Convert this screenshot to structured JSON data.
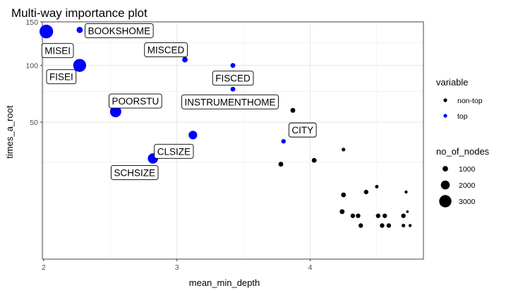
{
  "chart_data": {
    "type": "scatter",
    "title": "Multi-way importance plot",
    "xlabel": "mean_min_depth",
    "ylabel": "times_a_root",
    "xlim": [
      1.99,
      4.85
    ],
    "y_scale": "sqrt",
    "ylim": [
      0,
      150
    ],
    "x_ticks": [
      2,
      3,
      4
    ],
    "x_tick_labels": [
      "2",
      "3",
      "4"
    ],
    "y_ticks": [
      50,
      100,
      150
    ],
    "y_tick_labels": [
      "50",
      "100",
      "150"
    ],
    "grid": true,
    "legend_position": "right",
    "color_legend": {
      "title": "variable",
      "entries": [
        {
          "label": "non-top",
          "color": "#000000"
        },
        {
          "label": "top",
          "color": "#0000ff"
        }
      ]
    },
    "size_legend": {
      "title": "no_of_nodes",
      "entries": [
        {
          "label": "1000",
          "value": 1000
        },
        {
          "label": "2000",
          "value": 2000
        },
        {
          "label": "3000",
          "value": 3000
        }
      ]
    },
    "points": [
      {
        "x": 2.02,
        "y": 138,
        "nodes": 3400,
        "group": "top",
        "label": "MISEI"
      },
      {
        "x": 2.27,
        "y": 140,
        "nodes": 1200,
        "group": "top",
        "label": "BOOKSHOME"
      },
      {
        "x": 2.27,
        "y": 100,
        "nodes": 3200,
        "group": "top",
        "label": "FISEI"
      },
      {
        "x": 3.06,
        "y": 106,
        "nodes": 1000,
        "group": "top",
        "label": "MISCED"
      },
      {
        "x": 3.42,
        "y": 100,
        "nodes": 800,
        "group": "top",
        "label": "FISCED"
      },
      {
        "x": 3.42,
        "y": 77,
        "nodes": 800,
        "group": "top",
        "label": "INSTRUMENTHOME"
      },
      {
        "x": 2.54,
        "y": 58,
        "nodes": 2700,
        "group": "top",
        "label": "POORSTU"
      },
      {
        "x": 3.12,
        "y": 41,
        "nodes": 1900,
        "group": "top",
        "label": "CLSIZE"
      },
      {
        "x": 3.8,
        "y": 37,
        "nodes": 700,
        "group": "top",
        "label": "CITY"
      },
      {
        "x": 2.82,
        "y": 27,
        "nodes": 2400,
        "group": "top",
        "label": "SCHSIZE"
      },
      {
        "x": 3.87,
        "y": 59,
        "nodes": 800,
        "group": "non-top"
      },
      {
        "x": 4.25,
        "y": 32,
        "nodes": 450,
        "group": "non-top"
      },
      {
        "x": 4.03,
        "y": 26,
        "nodes": 800,
        "group": "non-top"
      },
      {
        "x": 3.78,
        "y": 24,
        "nodes": 800,
        "group": "non-top"
      },
      {
        "x": 4.5,
        "y": 14,
        "nodes": 400,
        "group": "non-top"
      },
      {
        "x": 4.42,
        "y": 12,
        "nodes": 700,
        "group": "non-top"
      },
      {
        "x": 4.72,
        "y": 12,
        "nodes": 300,
        "group": "non-top"
      },
      {
        "x": 4.25,
        "y": 11,
        "nodes": 800,
        "group": "non-top"
      },
      {
        "x": 4.24,
        "y": 6,
        "nodes": 800,
        "group": "non-top"
      },
      {
        "x": 4.73,
        "y": 6,
        "nodes": 150,
        "group": "non-top"
      },
      {
        "x": 4.32,
        "y": 5,
        "nodes": 700,
        "group": "non-top"
      },
      {
        "x": 4.36,
        "y": 5,
        "nodes": 700,
        "group": "non-top"
      },
      {
        "x": 4.51,
        "y": 5,
        "nodes": 700,
        "group": "non-top"
      },
      {
        "x": 4.56,
        "y": 5,
        "nodes": 700,
        "group": "non-top"
      },
      {
        "x": 4.7,
        "y": 5,
        "nodes": 700,
        "group": "non-top"
      },
      {
        "x": 4.38,
        "y": 3,
        "nodes": 700,
        "group": "non-top"
      },
      {
        "x": 4.54,
        "y": 3,
        "nodes": 700,
        "group": "non-top"
      },
      {
        "x": 4.59,
        "y": 3,
        "nodes": 700,
        "group": "non-top"
      },
      {
        "x": 4.7,
        "y": 3,
        "nodes": 450,
        "group": "non-top"
      },
      {
        "x": 4.75,
        "y": 3,
        "nodes": 300,
        "group": "non-top"
      }
    ]
  }
}
